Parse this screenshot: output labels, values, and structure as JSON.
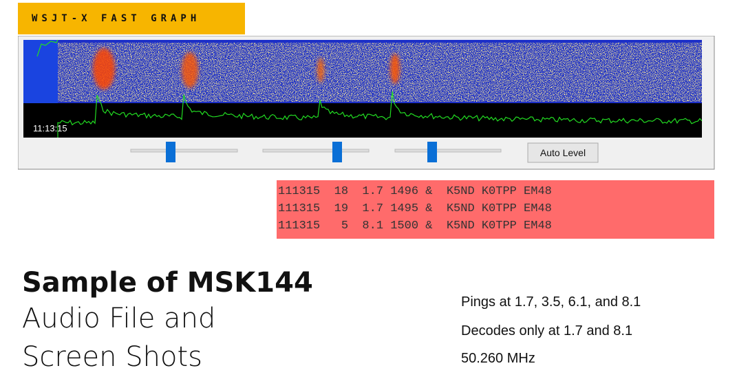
{
  "label": "WSJT-X FAST GRAPH",
  "screenshot": {
    "timestamp": "11:13:15",
    "button": "Auto Level"
  },
  "decodes": [
    "111315  18  1.7 1496 &  K5ND K0TPP EM48",
    "111315  19  1.7 1495 &  K5ND K0TPP EM48",
    "111315   5  8.1 1500 &  K5ND K0TPP EM48"
  ],
  "heading": {
    "title": "Sample of MSK144",
    "lines": [
      "Audio File and",
      "Screen Shots"
    ]
  },
  "notes": [
    "Pings at 1.7, 3.5, 6.1, and 8.1",
    "Decodes only at 1.7 and 8.1",
    "50.260 MHz"
  ]
}
